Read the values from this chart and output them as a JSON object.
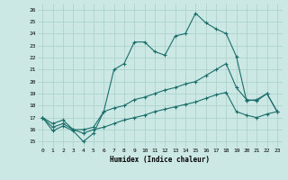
{
  "xlabel": "Humidex (Indice chaleur)",
  "background_color": "#cce8e4",
  "grid_color": "#aacfcc",
  "line_color": "#1a6e6a",
  "xlim": [
    -0.5,
    23.5
  ],
  "ylim": [
    14.5,
    26.5
  ],
  "xticks": [
    0,
    1,
    2,
    3,
    4,
    5,
    6,
    7,
    8,
    9,
    10,
    11,
    12,
    13,
    14,
    15,
    16,
    17,
    18,
    19,
    20,
    21,
    22,
    23
  ],
  "yticks": [
    15,
    16,
    17,
    18,
    19,
    20,
    21,
    22,
    23,
    24,
    25,
    26
  ],
  "series": [
    [
      17.0,
      15.9,
      16.3,
      15.9,
      15.0,
      15.7,
      17.5,
      21.0,
      21.5,
      23.3,
      23.3,
      22.5,
      22.2,
      23.8,
      24.0,
      25.7,
      24.9,
      24.4,
      24.0,
      22.1,
      18.4,
      18.5,
      19.0,
      17.5
    ],
    [
      17.0,
      16.5,
      16.8,
      16.0,
      16.0,
      16.2,
      17.5,
      17.8,
      18.0,
      18.5,
      18.7,
      19.0,
      19.3,
      19.5,
      19.8,
      20.0,
      20.5,
      21.0,
      21.5,
      19.5,
      18.5,
      18.4,
      19.0,
      17.5
    ],
    [
      17.0,
      16.2,
      16.5,
      16.0,
      15.7,
      16.0,
      16.2,
      16.5,
      16.8,
      17.0,
      17.2,
      17.5,
      17.7,
      17.9,
      18.1,
      18.3,
      18.6,
      18.9,
      19.1,
      17.5,
      17.2,
      17.0,
      17.3,
      17.5
    ]
  ]
}
